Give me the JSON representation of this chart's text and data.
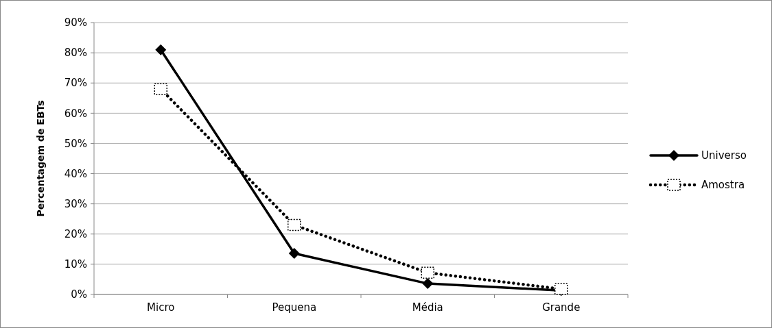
{
  "chart_data": {
    "type": "line",
    "ylabel": "Percentagem de EBTs",
    "categories": [
      "Micro",
      "Pequena",
      "Média",
      "Grande"
    ],
    "series": [
      {
        "name": "Universo",
        "color": "#000000",
        "values": [
          81,
          13.6,
          3.6,
          1.3
        ],
        "marker": "diamond",
        "line_style": "solid"
      },
      {
        "name": "Amostra",
        "color": "#000000",
        "values": [
          68,
          23,
          7.2,
          1.8
        ],
        "marker": "square",
        "line_style": "dotted"
      }
    ],
    "ylim": [
      0,
      90
    ],
    "yticks": [
      {
        "value": 0,
        "label": "0%"
      },
      {
        "value": 10,
        "label": "10%"
      },
      {
        "value": 20,
        "label": "20%"
      },
      {
        "value": 30,
        "label": "30%"
      },
      {
        "value": 40,
        "label": "40%"
      },
      {
        "value": 50,
        "label": "50%"
      },
      {
        "value": 60,
        "label": "60%"
      },
      {
        "value": 70,
        "label": "70%"
      },
      {
        "value": 80,
        "label": "80%"
      },
      {
        "value": 90,
        "label": "90%"
      }
    ],
    "grid": "y",
    "legend": "right"
  }
}
